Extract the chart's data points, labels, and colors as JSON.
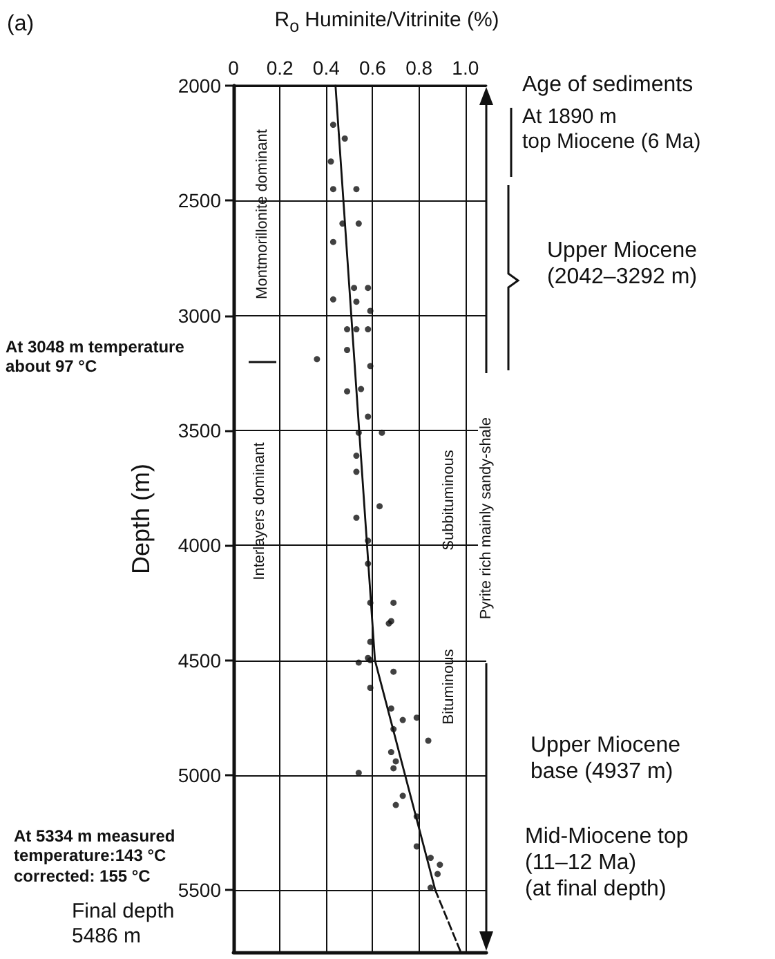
{
  "chart_data": {
    "type": "scatter",
    "xlabel": "R$_{o}$ Huminite/Vitrinite (%)",
    "ylabel": "Depth (m)",
    "xlim": [
      0,
      1.09
    ],
    "xticks": [
      0,
      0.2,
      0.4,
      0.6,
      0.8,
      {
        "value": 1,
        "label": "1.0"
      }
    ],
    "ylim": [
      5770,
      2000
    ],
    "yticks": [
      2000,
      2500,
      3000,
      3500,
      4000,
      4500,
      5000,
      5500
    ],
    "grid": true,
    "marker": "circle",
    "series": [
      {
        "color": "#111111",
        "x": [
          0.43,
          0.48,
          0.42,
          0.43,
          0.53,
          0.47,
          0.54,
          0.43,
          0.52,
          0.58,
          0.43,
          0.53,
          0.59,
          0.49,
          0.53,
          0.58,
          0.49,
          0.36,
          0.59,
          0.49,
          0.55,
          0.58,
          0.54,
          0.64,
          0.53,
          0.53,
          0.63,
          0.53,
          0.57,
          0.58,
          0.58,
          0.59,
          0.69,
          0.67,
          0.68,
          0.59,
          0.58,
          0.59,
          0.54,
          0.69,
          0.59,
          0.68,
          0.73,
          0.79,
          0.69,
          0.84,
          0.68,
          0.7,
          0.54,
          0.69,
          0.73,
          0.7,
          0.79,
          0.79,
          0.85,
          0.89,
          0.88,
          0.85
        ],
        "values": [
          2170,
          2230,
          2330,
          2450,
          2450,
          2600,
          2600,
          2680,
          2880,
          2880,
          2930,
          2940,
          2980,
          3060,
          3060,
          3060,
          3150,
          3190,
          3220,
          3330,
          3320,
          3440,
          3510,
          3510,
          3610,
          3680,
          3830,
          3880,
          null,
          3980,
          4080,
          4250,
          4250,
          4340,
          4330,
          4420,
          4490,
          4500,
          4510,
          4550,
          4620,
          4710,
          4760,
          4750,
          4800,
          4850,
          4900,
          4940,
          4990,
          4970,
          5090,
          5130,
          5180,
          5310,
          5360,
          5390,
          5430,
          5490
        ]
      },
      {
        "type": "line",
        "color": "#111111",
        "marker": "none",
        "line_style": "solid",
        "x": [
          0.44,
          0.61,
          0.87
        ],
        "values": [
          2000,
          4500,
          5500
        ]
      },
      {
        "type": "line",
        "color": "#111111",
        "marker": "none",
        "line_style": "dashed",
        "x": [
          0.87,
          0.98
        ],
        "values": [
          5500,
          5770
        ]
      }
    ],
    "annotations": [
      "(a)",
      "Age of sediments",
      "At 1890 m\ntop Miocene (6 Ma)",
      "Upper Miocene\n(2042–3292 m)",
      "At 3048 m temperature\nabout 97 °C",
      "Montmorillonite dominant",
      "Interlayers dominant",
      "Subbituminous",
      "Pyrite rich mainly sandy-shale",
      "Bituminous",
      "Upper Miocene\nbase (4937 m)",
      "At 5334 m measured\ntemperature:143 °C\ncorrected: 155 °C",
      "Mid-Miocene top\n(11–12 Ma)\n(at final depth)",
      "Final depth\n5486 m"
    ]
  }
}
